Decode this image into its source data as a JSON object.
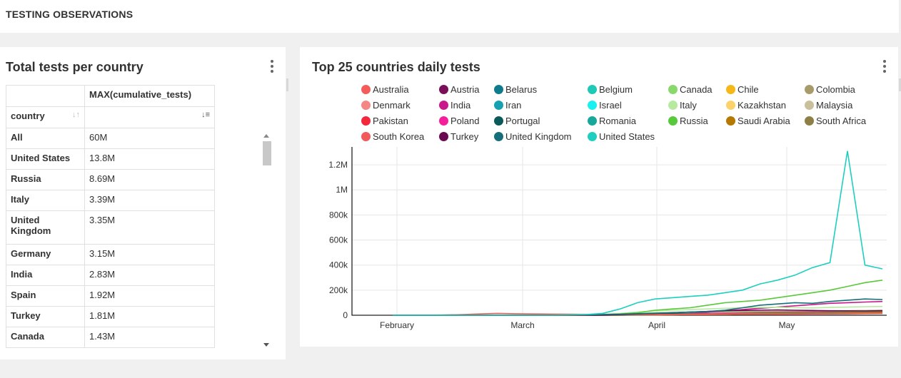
{
  "header": {
    "title": "TESTING OBSERVATIONS"
  },
  "left_panel": {
    "title": "Total tests per country",
    "table": {
      "metric_header": "MAX(cumulative_tests)",
      "dim_header": "country",
      "rows": [
        {
          "country": "All",
          "value": "60M"
        },
        {
          "country": "United States",
          "value": "13.8M"
        },
        {
          "country": "Russia",
          "value": "8.69M"
        },
        {
          "country": "Italy",
          "value": "3.39M"
        },
        {
          "country": "United Kingdom",
          "value": "3.35M"
        },
        {
          "country": "Germany",
          "value": "3.15M"
        },
        {
          "country": "India",
          "value": "2.83M"
        },
        {
          "country": "Spain",
          "value": "1.92M"
        },
        {
          "country": "Turkey",
          "value": "1.81M"
        },
        {
          "country": "Canada",
          "value": "1.43M"
        }
      ]
    }
  },
  "right_panel": {
    "title": "Top 25 countries daily tests"
  },
  "chart_data": {
    "type": "line",
    "title": "Top 25 countries daily tests",
    "x_ticks": [
      "February",
      "March",
      "April",
      "May"
    ],
    "y_ticks": [
      "0",
      "200k",
      "400k",
      "600k",
      "800k",
      "1M",
      "1.2M"
    ],
    "ylim": [
      0,
      1320000
    ],
    "legend_position": "top",
    "series": [
      {
        "name": "Australia",
        "color": "#f45c5c",
        "values": [
          0,
          0,
          0,
          0,
          0,
          0,
          0,
          0,
          0,
          0,
          1000,
          1500,
          2000,
          3000,
          5000,
          8000,
          10000,
          12000,
          15000,
          17000,
          20000,
          22000,
          25000,
          28000,
          30000,
          32000,
          35000,
          38000,
          40000
        ]
      },
      {
        "name": "Austria",
        "color": "#7a0f57",
        "values": [
          0,
          0,
          0,
          0,
          0,
          0,
          0,
          0,
          0,
          0,
          1000,
          2000,
          3000,
          5000,
          6000,
          8000,
          9000,
          10000,
          11000,
          12000,
          13000,
          12000,
          13000,
          14000,
          15000,
          14000,
          15000,
          16000,
          17000
        ]
      },
      {
        "name": "Belarus",
        "color": "#0e7b8c",
        "values": [
          0,
          0,
          0,
          0,
          0,
          0,
          0,
          0,
          0,
          0,
          0,
          0,
          0,
          2000,
          4000,
          6000,
          8000,
          10000,
          12000,
          14000,
          16000,
          18000,
          20000,
          22000,
          24000,
          25000,
          26000,
          27000,
          28000
        ]
      },
      {
        "name": "Belgium",
        "color": "#1ec9b6",
        "values": [
          0,
          0,
          0,
          0,
          0,
          0,
          0,
          0,
          0,
          0,
          0,
          0,
          1000,
          3000,
          5000,
          8000,
          10000,
          12000,
          14000,
          15000,
          16000,
          17000,
          18000,
          19000,
          20000,
          21000,
          22000,
          23000,
          24000
        ]
      },
      {
        "name": "Canada",
        "color": "#89d86c",
        "values": [
          0,
          0,
          0,
          0,
          0,
          0,
          0,
          0,
          0,
          0,
          0,
          2000,
          5000,
          10000,
          15000,
          20000,
          22000,
          25000,
          28000,
          30000,
          32000,
          30000,
          31000,
          32000,
          34000,
          35000,
          36000,
          38000,
          40000
        ]
      },
      {
        "name": "Chile",
        "color": "#f5b818",
        "values": [
          0,
          0,
          0,
          0,
          0,
          0,
          0,
          0,
          0,
          0,
          0,
          0,
          1000,
          2000,
          3000,
          4000,
          5000,
          6000,
          7000,
          8000,
          9000,
          10000,
          11000,
          12000,
          13000,
          14000,
          15000,
          16000,
          17000
        ]
      },
      {
        "name": "Colombia",
        "color": "#a99a6a",
        "values": [
          0,
          0,
          0,
          0,
          0,
          0,
          0,
          0,
          0,
          0,
          0,
          0,
          0,
          1000,
          2000,
          3000,
          4000,
          5000,
          6000,
          7000,
          8000,
          9000,
          10000,
          11000,
          12000,
          13000,
          14000,
          15000,
          16000
        ]
      },
      {
        "name": "Denmark",
        "color": "#f58686",
        "values": [
          0,
          0,
          0,
          0,
          0,
          0,
          0,
          0,
          0,
          0,
          0,
          0,
          1000,
          2000,
          3000,
          4000,
          6000,
          8000,
          10000,
          12000,
          14000,
          16000,
          18000,
          20000,
          19000,
          18000,
          20000,
          21000,
          22000
        ]
      },
      {
        "name": "India",
        "color": "#c8188c",
        "values": [
          0,
          0,
          0,
          0,
          0,
          0,
          0,
          0,
          0,
          0,
          0,
          0,
          0,
          1000,
          3000,
          6000,
          10000,
          15000,
          25000,
          35000,
          45000,
          55000,
          65000,
          75000,
          85000,
          95000,
          100000,
          105000,
          110000
        ]
      },
      {
        "name": "Iran",
        "color": "#16a1b2",
        "values": [
          0,
          0,
          0,
          0,
          0,
          0,
          0,
          0,
          0,
          0,
          2000,
          4000,
          6000,
          8000,
          10000,
          12000,
          13000,
          14000,
          15000,
          16000,
          17000,
          18000,
          19000,
          20000,
          21000,
          22000,
          23000,
          24000,
          25000
        ]
      },
      {
        "name": "Israel",
        "color": "#19f0f0",
        "values": [
          0,
          0,
          0,
          0,
          0,
          0,
          0,
          0,
          0,
          0,
          0,
          0,
          1000,
          3000,
          5000,
          8000,
          10000,
          9000,
          8000,
          7000,
          8000,
          9000,
          10000,
          11000,
          12000,
          11000,
          12000,
          13000,
          14000
        ]
      },
      {
        "name": "Italy",
        "color": "#b7eaa0",
        "values": [
          0,
          0,
          0,
          0,
          0,
          0,
          0,
          0,
          0,
          0,
          1000,
          3000,
          8000,
          15000,
          25000,
          35000,
          40000,
          45000,
          50000,
          55000,
          60000,
          62000,
          64000,
          60000,
          58000,
          62000,
          65000,
          68000,
          70000
        ]
      },
      {
        "name": "Kazakhstan",
        "color": "#fbd36a",
        "values": [
          0,
          0,
          0,
          0,
          0,
          0,
          0,
          0,
          0,
          0,
          0,
          0,
          0,
          1000,
          2000,
          3000,
          5000,
          7000,
          9000,
          11000,
          13000,
          15000,
          17000,
          19000,
          20000,
          21000,
          22000,
          23000,
          24000
        ]
      },
      {
        "name": "Malaysia",
        "color": "#c9bf9a",
        "values": [
          0,
          0,
          0,
          0,
          0,
          0,
          0,
          0,
          0,
          0,
          0,
          0,
          1000,
          2000,
          3000,
          4000,
          5000,
          6000,
          7000,
          8000,
          9000,
          10000,
          11000,
          12000,
          13000,
          14000,
          15000,
          16000,
          17000
        ]
      },
      {
        "name": "Pakistan",
        "color": "#f2283c",
        "values": [
          0,
          0,
          0,
          0,
          0,
          0,
          0,
          0,
          0,
          0,
          0,
          0,
          0,
          1000,
          2000,
          3000,
          4000,
          5000,
          6000,
          8000,
          10000,
          12000,
          14000,
          16000,
          18000,
          20000,
          22000,
          24000,
          26000
        ]
      },
      {
        "name": "Poland",
        "color": "#f41f9a",
        "values": [
          0,
          0,
          0,
          0,
          0,
          0,
          0,
          0,
          0,
          0,
          0,
          0,
          1000,
          3000,
          5000,
          8000,
          10000,
          12000,
          15000,
          18000,
          20000,
          22000,
          24000,
          26000,
          28000,
          30000,
          32000,
          34000,
          36000
        ]
      },
      {
        "name": "Portugal",
        "color": "#0a5a5a",
        "values": [
          0,
          0,
          0,
          0,
          0,
          0,
          0,
          0,
          0,
          0,
          0,
          0,
          1000,
          3000,
          6000,
          9000,
          12000,
          10000,
          11000,
          12000,
          13000,
          14000,
          15000,
          14000,
          15000,
          16000,
          15000,
          16000,
          17000
        ]
      },
      {
        "name": "Romania",
        "color": "#17a79b",
        "values": [
          0,
          0,
          0,
          0,
          0,
          0,
          0,
          0,
          0,
          0,
          0,
          0,
          0,
          1000,
          2000,
          4000,
          6000,
          8000,
          10000,
          12000,
          14000,
          16000,
          18000,
          20000,
          22000,
          24000,
          26000,
          28000,
          30000
        ]
      },
      {
        "name": "Russia",
        "color": "#58c93a",
        "values": [
          0,
          0,
          0,
          0,
          0,
          0,
          0,
          0,
          0,
          0,
          0,
          2000,
          5000,
          10000,
          20000,
          40000,
          50000,
          60000,
          80000,
          100000,
          110000,
          120000,
          140000,
          160000,
          180000,
          200000,
          230000,
          260000,
          280000
        ]
      },
      {
        "name": "Saudi Arabia",
        "color": "#b57800",
        "values": [
          0,
          0,
          0,
          0,
          0,
          0,
          0,
          0,
          0,
          0,
          0,
          0,
          0,
          1000,
          2000,
          3000,
          4000,
          5000,
          6000,
          7000,
          8000,
          9000,
          10000,
          11000,
          12000,
          14000,
          16000,
          18000,
          20000
        ]
      },
      {
        "name": "South Africa",
        "color": "#8e7f45",
        "values": [
          0,
          0,
          0,
          0,
          0,
          0,
          0,
          0,
          0,
          0,
          0,
          0,
          0,
          1000,
          3000,
          5000,
          7000,
          9000,
          11000,
          13000,
          15000,
          17000,
          19000,
          21000,
          23000,
          25000,
          27000,
          29000,
          30000
        ]
      },
      {
        "name": "South Korea",
        "color": "#f05a5a",
        "values": [
          0,
          0,
          0,
          2000,
          5000,
          10000,
          15000,
          12000,
          10000,
          9000,
          8000,
          7000,
          6000,
          7000,
          6000,
          5000,
          6000,
          7000,
          8000,
          9000,
          10000,
          9000,
          8000,
          9000,
          10000,
          11000,
          12000,
          13000,
          14000
        ]
      },
      {
        "name": "Turkey",
        "color": "#6a0a50",
        "values": [
          0,
          0,
          0,
          0,
          0,
          0,
          0,
          0,
          0,
          0,
          0,
          0,
          1000,
          5000,
          10000,
          15000,
          20000,
          25000,
          30000,
          35000,
          38000,
          40000,
          42000,
          40000,
          38000,
          36000,
          35000,
          34000,
          36000
        ]
      },
      {
        "name": "United Kingdom",
        "color": "#166e7a",
        "values": [
          0,
          0,
          0,
          0,
          0,
          0,
          0,
          0,
          0,
          0,
          1000,
          3000,
          5000,
          8000,
          12000,
          16000,
          20000,
          25000,
          30000,
          40000,
          60000,
          80000,
          90000,
          100000,
          95000,
          110000,
          120000,
          130000,
          125000
        ]
      },
      {
        "name": "United States",
        "color": "#1ecfbf",
        "values": [
          0,
          0,
          0,
          0,
          0,
          0,
          0,
          0,
          0,
          0,
          2000,
          5000,
          15000,
          50000,
          100000,
          130000,
          140000,
          150000,
          160000,
          180000,
          200000,
          250000,
          280000,
          320000,
          380000,
          420000,
          1310000,
          400000,
          370000
        ]
      }
    ]
  }
}
